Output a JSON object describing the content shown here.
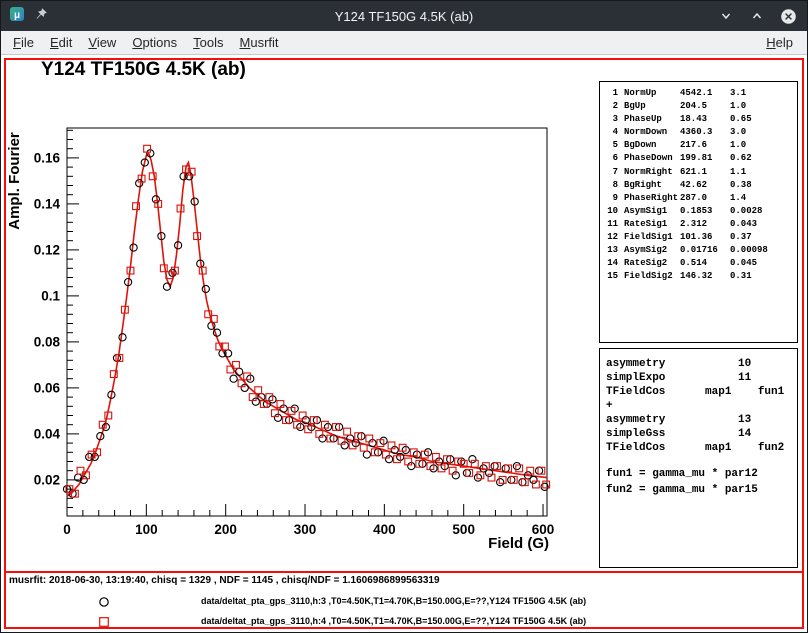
{
  "window": {
    "title": "Y124 TF150G 4.5K (ab)"
  },
  "menubar": {
    "items": [
      "File",
      "Edit",
      "View",
      "Options",
      "Tools",
      "Musrfit"
    ],
    "right_items": [
      "Help"
    ]
  },
  "canvas": {
    "title": "Y124 TF150G 4.5K (ab)"
  },
  "colors": {
    "pad_highlight": "#f50f0b",
    "fit_line": "#e01309",
    "series2_red": "#d8120c",
    "series1_black": "#000000"
  },
  "parameters": {
    "rows": [
      {
        "no": "1",
        "name": "NormUp",
        "value": "4542.1",
        "error": "3.1"
      },
      {
        "no": "2",
        "name": "BgUp",
        "value": "204.5",
        "error": "1.0"
      },
      {
        "no": "3",
        "name": "PhaseUp",
        "value": "18.43",
        "error": "0.65"
      },
      {
        "no": "4",
        "name": "NormDown",
        "value": "4360.3",
        "error": "3.0"
      },
      {
        "no": "5",
        "name": "BgDown",
        "value": "217.6",
        "error": "1.0"
      },
      {
        "no": "6",
        "name": "PhaseDown",
        "value": "199.81",
        "error": "0.62"
      },
      {
        "no": "7",
        "name": "NormRight",
        "value": "621.1",
        "error": "1.1"
      },
      {
        "no": "8",
        "name": "BgRight",
        "value": "42.62",
        "error": "0.38"
      },
      {
        "no": "9",
        "name": "PhaseRight",
        "value": "287.0",
        "error": "1.4"
      },
      {
        "no": "10",
        "name": "AsymSig1",
        "value": "0.1853",
        "error": "0.0028"
      },
      {
        "no": "11",
        "name": "RateSig1",
        "value": "2.312",
        "error": "0.043"
      },
      {
        "no": "12",
        "name": "FieldSig1",
        "value": "101.36",
        "error": "0.37"
      },
      {
        "no": "13",
        "name": "AsymSig2",
        "value": "0.01716",
        "error": "0.00098"
      },
      {
        "no": "14",
        "name": "RateSig2",
        "value": "0.514",
        "error": "0.045"
      },
      {
        "no": "15",
        "name": "FieldSig2",
        "value": "146.32",
        "error": "0.31"
      }
    ]
  },
  "theory": {
    "lines": [
      "asymmetry           10",
      "simplExpo           11",
      "TFieldCos      map1    fun1",
      "+",
      "asymmetry           13",
      "simpleGss           14",
      "TFieldCos      map1    fun2"
    ],
    "functions": [
      "fun1 = gamma_mu * par12",
      "fun2 = gamma_mu * par15"
    ]
  },
  "statusbar": {
    "text": "musrfit: 2018-06-30, 13:19:40, chisq = 1329 , NDF = 1145 , chisq/NDF = 1.1606986899563319"
  },
  "legend": {
    "entries": [
      {
        "marker": "circle",
        "color": "#000000",
        "label": "data/deltat_pta_gps_3110,h:3 ,T0=4.50K,T1=4.70K,B=150.00G,E=??,Y124 TF150G 4.5K (ab)"
      },
      {
        "marker": "square",
        "color": "#d8120c",
        "label": "data/deltat_pta_gps_3110,h:4 ,T0=4.50K,T1=4.70K,B=150.00G,E=??,Y124 TF150G 4.5K (ab)"
      }
    ]
  },
  "chart_data": {
    "type": "scatter",
    "title": "Y124 TF150G 4.5K (ab)",
    "xlabel": "Field (G)",
    "ylabel": "Ampl. Fourier",
    "xlim": [
      0,
      605
    ],
    "ylim": [
      0.0043,
      0.173
    ],
    "xticks": [
      0,
      100,
      200,
      300,
      400,
      500,
      600
    ],
    "xtick_labels": [
      "0",
      "100",
      "200",
      "300",
      "400",
      "500",
      "600"
    ],
    "x_minor_step": 20,
    "yticks": [
      0.02,
      0.04,
      0.06,
      0.08,
      0.1,
      0.12,
      0.14,
      0.16
    ],
    "ytick_labels": [
      "0.02",
      "0.04",
      "0.06",
      "0.08",
      "0.1",
      "0.12",
      "0.14",
      "0.16"
    ],
    "y_minor_step": 0.004,
    "grid": false,
    "legend_position": "bottom",
    "series": [
      {
        "name": "data/deltat_pta_gps_3110,h:3 ,T0=4.50K,T1=4.70K,B=150.00G,E=??,Y124 TF150G 4.5K (ab)",
        "type": "scatter",
        "marker": "circle",
        "color": "#000000",
        "points": [
          [
            0,
            0.016
          ],
          [
            7,
            0.014
          ],
          [
            14,
            0.021
          ],
          [
            21,
            0.02
          ],
          [
            28,
            0.03
          ],
          [
            35,
            0.03
          ],
          [
            42,
            0.039
          ],
          [
            49,
            0.043
          ],
          [
            56,
            0.057
          ],
          [
            63,
            0.073
          ],
          [
            70,
            0.082
          ],
          [
            77,
            0.106
          ],
          [
            84,
            0.121
          ],
          [
            91,
            0.149
          ],
          [
            98,
            0.158
          ],
          [
            105,
            0.162
          ],
          [
            112,
            0.142
          ],
          [
            119,
            0.126
          ],
          [
            126,
            0.104
          ],
          [
            133,
            0.11
          ],
          [
            140,
            0.122
          ],
          [
            147,
            0.152
          ],
          [
            154,
            0.152
          ],
          [
            161,
            0.141
          ],
          [
            168,
            0.114
          ],
          [
            175,
            0.103
          ],
          [
            182,
            0.087
          ],
          [
            189,
            0.084
          ],
          [
            196,
            0.075
          ],
          [
            203,
            0.075
          ],
          [
            210,
            0.064
          ],
          [
            217,
            0.067
          ],
          [
            224,
            0.06
          ],
          [
            231,
            0.064
          ],
          [
            238,
            0.054
          ],
          [
            245,
            0.056
          ],
          [
            252,
            0.053
          ],
          [
            259,
            0.055
          ],
          [
            266,
            0.047
          ],
          [
            273,
            0.051
          ],
          [
            280,
            0.046
          ],
          [
            287,
            0.051
          ],
          [
            294,
            0.043
          ],
          [
            301,
            0.046
          ],
          [
            308,
            0.043
          ],
          [
            315,
            0.046
          ],
          [
            322,
            0.038
          ],
          [
            329,
            0.043
          ],
          [
            336,
            0.038
          ],
          [
            343,
            0.043
          ],
          [
            350,
            0.035
          ],
          [
            357,
            0.038
          ],
          [
            364,
            0.036
          ],
          [
            371,
            0.039
          ],
          [
            378,
            0.031
          ],
          [
            385,
            0.036
          ],
          [
            392,
            0.032
          ],
          [
            399,
            0.037
          ],
          [
            406,
            0.029
          ],
          [
            413,
            0.033
          ],
          [
            420,
            0.03
          ],
          [
            427,
            0.033
          ],
          [
            434,
            0.026
          ],
          [
            441,
            0.031
          ],
          [
            448,
            0.027
          ],
          [
            455,
            0.032
          ],
          [
            462,
            0.025
          ],
          [
            469,
            0.028
          ],
          [
            476,
            0.026
          ],
          [
            483,
            0.029
          ],
          [
            490,
            0.022
          ],
          [
            497,
            0.028
          ],
          [
            504,
            0.023
          ],
          [
            511,
            0.029
          ],
          [
            518,
            0.021
          ],
          [
            525,
            0.025
          ],
          [
            532,
            0.023
          ],
          [
            539,
            0.026
          ],
          [
            546,
            0.019
          ],
          [
            553,
            0.025
          ],
          [
            560,
            0.02
          ],
          [
            567,
            0.026
          ],
          [
            574,
            0.019
          ],
          [
            581,
            0.022
          ],
          [
            588,
            0.02
          ],
          [
            595,
            0.024
          ],
          [
            602,
            0.017
          ]
        ]
      },
      {
        "name": "data/deltat_pta_gps_3110,h:4 ,T0=4.50K,T1=4.70K,B=150.00G,E=??,Y124 TF150G 4.5K (ab)",
        "type": "scatter",
        "marker": "square",
        "color": "#d8120c",
        "points": [
          [
            3,
            0.016
          ],
          [
            10,
            0.014
          ],
          [
            17,
            0.024
          ],
          [
            24,
            0.022
          ],
          [
            31,
            0.031
          ],
          [
            38,
            0.032
          ],
          [
            45,
            0.044
          ],
          [
            52,
            0.048
          ],
          [
            59,
            0.066
          ],
          [
            66,
            0.073
          ],
          [
            73,
            0.094
          ],
          [
            80,
            0.111
          ],
          [
            87,
            0.139
          ],
          [
            94,
            0.151
          ],
          [
            101,
            0.164
          ],
          [
            108,
            0.152
          ],
          [
            115,
            0.14
          ],
          [
            122,
            0.112
          ],
          [
            129,
            0.109
          ],
          [
            136,
            0.111
          ],
          [
            143,
            0.138
          ],
          [
            150,
            0.155
          ],
          [
            157,
            0.154
          ],
          [
            164,
            0.126
          ],
          [
            171,
            0.111
          ],
          [
            178,
            0.092
          ],
          [
            185,
            0.09
          ],
          [
            192,
            0.078
          ],
          [
            199,
            0.078
          ],
          [
            206,
            0.068
          ],
          [
            213,
            0.07
          ],
          [
            220,
            0.062
          ],
          [
            227,
            0.065
          ],
          [
            234,
            0.056
          ],
          [
            241,
            0.059
          ],
          [
            248,
            0.053
          ],
          [
            255,
            0.056
          ],
          [
            262,
            0.049
          ],
          [
            269,
            0.053
          ],
          [
            276,
            0.046
          ],
          [
            283,
            0.05
          ],
          [
            290,
            0.044
          ],
          [
            297,
            0.048
          ],
          [
            304,
            0.042
          ],
          [
            311,
            0.046
          ],
          [
            318,
            0.04
          ],
          [
            325,
            0.044
          ],
          [
            332,
            0.038
          ],
          [
            339,
            0.043
          ],
          [
            346,
            0.037
          ],
          [
            353,
            0.041
          ],
          [
            360,
            0.035
          ],
          [
            367,
            0.039
          ],
          [
            374,
            0.034
          ],
          [
            381,
            0.038
          ],
          [
            388,
            0.032
          ],
          [
            395,
            0.036
          ],
          [
            402,
            0.031
          ],
          [
            409,
            0.035
          ],
          [
            416,
            0.029
          ],
          [
            423,
            0.034
          ],
          [
            430,
            0.028
          ],
          [
            437,
            0.032
          ],
          [
            444,
            0.027
          ],
          [
            451,
            0.031
          ],
          [
            458,
            0.026
          ],
          [
            465,
            0.03
          ],
          [
            472,
            0.025
          ],
          [
            479,
            0.029
          ],
          [
            486,
            0.024
          ],
          [
            493,
            0.028
          ],
          [
            500,
            0.027
          ],
          [
            507,
            0.023
          ],
          [
            514,
            0.027
          ],
          [
            521,
            0.022
          ],
          [
            528,
            0.026
          ],
          [
            535,
            0.021
          ],
          [
            542,
            0.026
          ],
          [
            549,
            0.02
          ],
          [
            556,
            0.025
          ],
          [
            563,
            0.02
          ],
          [
            570,
            0.025
          ],
          [
            577,
            0.019
          ],
          [
            584,
            0.024
          ],
          [
            591,
            0.018
          ],
          [
            598,
            0.024
          ],
          [
            604,
            0.018
          ]
        ]
      },
      {
        "name": "fit",
        "type": "line",
        "color": "#e01309",
        "points": [
          [
            0,
            0.013
          ],
          [
            5,
            0.014
          ],
          [
            10,
            0.016
          ],
          [
            15,
            0.018
          ],
          [
            20,
            0.021
          ],
          [
            25,
            0.024
          ],
          [
            30,
            0.027
          ],
          [
            35,
            0.031
          ],
          [
            40,
            0.036
          ],
          [
            45,
            0.041
          ],
          [
            50,
            0.047
          ],
          [
            55,
            0.055
          ],
          [
            60,
            0.064
          ],
          [
            65,
            0.074
          ],
          [
            70,
            0.086
          ],
          [
            75,
            0.099
          ],
          [
            80,
            0.113
          ],
          [
            85,
            0.128
          ],
          [
            90,
            0.142
          ],
          [
            95,
            0.154
          ],
          [
            100,
            0.161
          ],
          [
            103,
            0.162
          ],
          [
            106,
            0.159
          ],
          [
            110,
            0.152
          ],
          [
            114,
            0.141
          ],
          [
            118,
            0.128
          ],
          [
            122,
            0.115
          ],
          [
            126,
            0.107
          ],
          [
            130,
            0.104
          ],
          [
            134,
            0.108
          ],
          [
            138,
            0.118
          ],
          [
            142,
            0.131
          ],
          [
            146,
            0.146
          ],
          [
            150,
            0.156
          ],
          [
            153,
            0.158
          ],
          [
            156,
            0.153
          ],
          [
            160,
            0.142
          ],
          [
            164,
            0.129
          ],
          [
            168,
            0.116
          ],
          [
            172,
            0.106
          ],
          [
            176,
            0.098
          ],
          [
            180,
            0.092
          ],
          [
            185,
            0.086
          ],
          [
            190,
            0.081
          ],
          [
            195,
            0.077
          ],
          [
            200,
            0.074
          ],
          [
            210,
            0.068
          ],
          [
            220,
            0.064
          ],
          [
            230,
            0.06
          ],
          [
            240,
            0.057
          ],
          [
            250,
            0.054
          ],
          [
            260,
            0.052
          ],
          [
            270,
            0.05
          ],
          [
            280,
            0.048
          ],
          [
            290,
            0.046
          ],
          [
            300,
            0.045
          ],
          [
            320,
            0.042
          ],
          [
            340,
            0.039
          ],
          [
            360,
            0.037
          ],
          [
            380,
            0.035
          ],
          [
            400,
            0.033
          ],
          [
            420,
            0.031
          ],
          [
            440,
            0.03
          ],
          [
            460,
            0.028
          ],
          [
            480,
            0.027
          ],
          [
            500,
            0.026
          ],
          [
            520,
            0.025
          ],
          [
            540,
            0.024
          ],
          [
            560,
            0.023
          ],
          [
            580,
            0.022
          ],
          [
            605,
            0.021
          ]
        ]
      }
    ]
  }
}
